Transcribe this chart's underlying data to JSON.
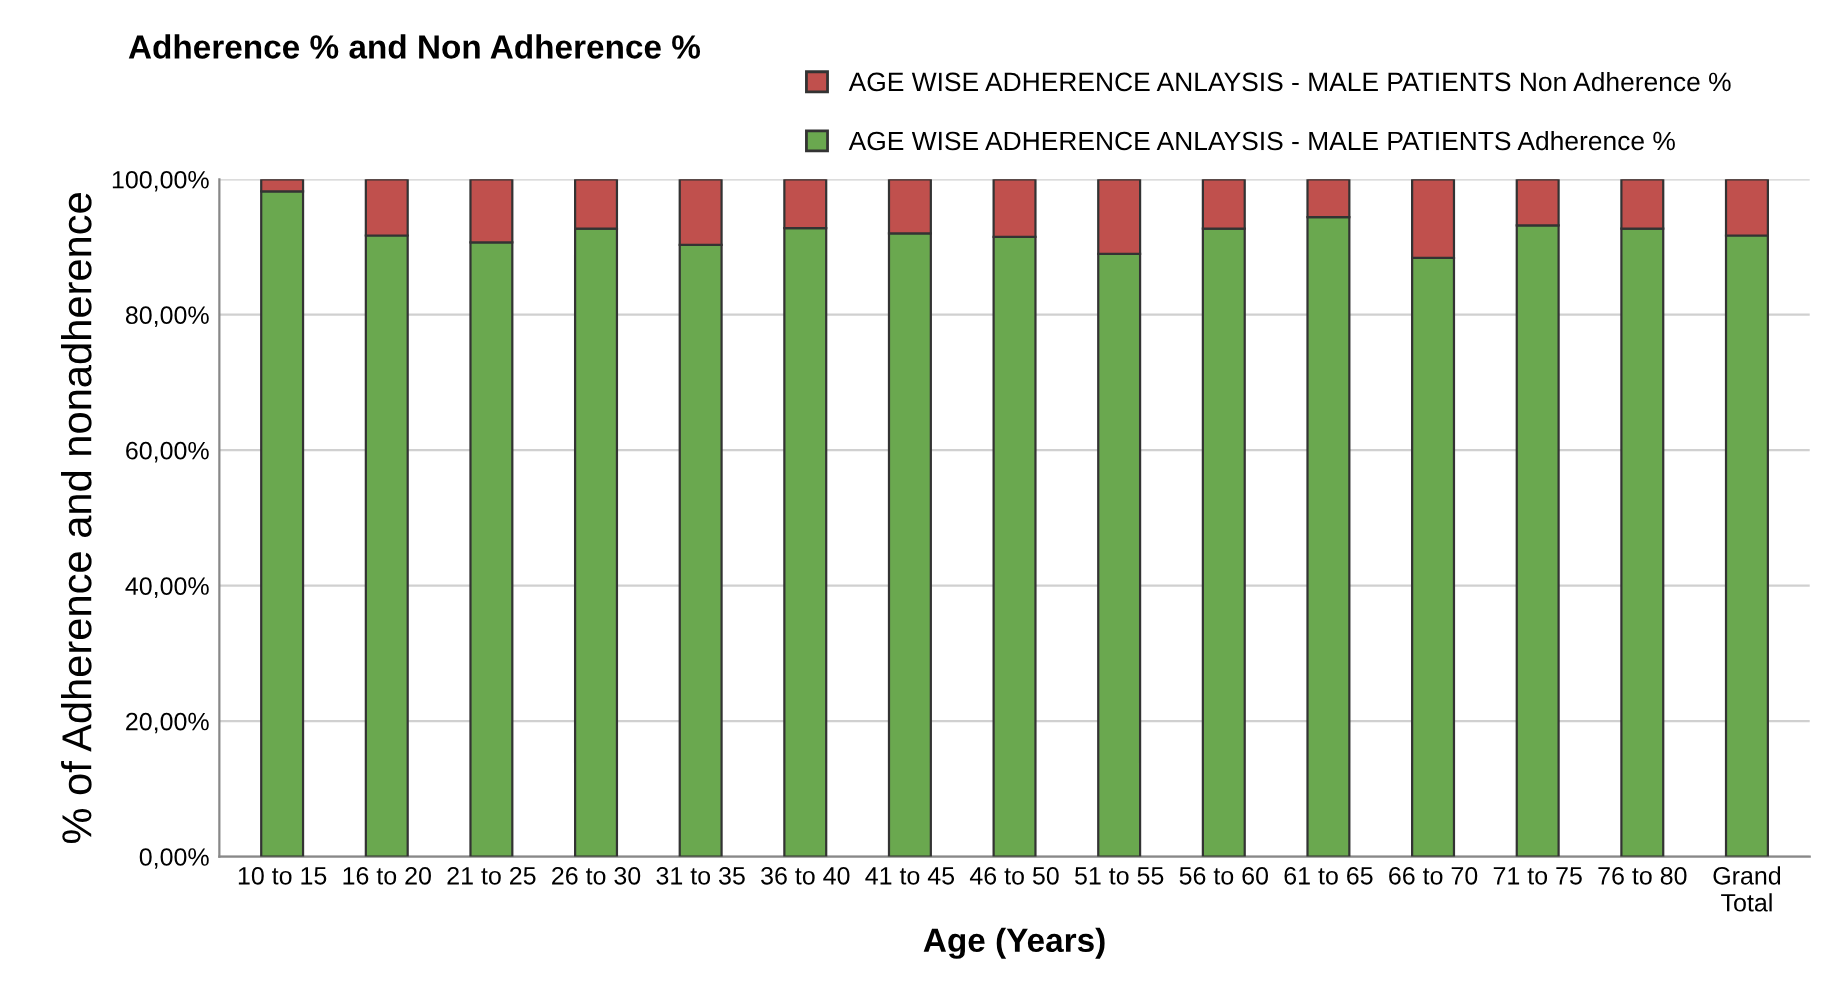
{
  "chart_data": {
    "type": "bar",
    "title": "Adherence % and Non Adherence %",
    "xlabel": "Age (Years)",
    "ylabel": "% of Adherence and nonadherence",
    "categories": [
      "10 to 15",
      "16 to 20",
      "21 to 25",
      "26 to 30",
      "31 to 35",
      "36 to 40",
      "41 to 45",
      "46 to 50",
      "51 to 55",
      "56 to 60",
      "61 to 65",
      "66 to 70",
      "71 to 75",
      "76 to 80",
      "Grand\nTotal"
    ],
    "stacked": true,
    "series": [
      {
        "name": "AGE WISE ADHERENCE ANLAYSIS - MALE PATIENTS Adherence %",
        "color": "#6aa84f",
        "values": [
          98.2,
          91.7,
          90.7,
          92.7,
          90.3,
          92.8,
          92.0,
          91.5,
          89.0,
          92.7,
          94.4,
          88.4,
          93.2,
          92.7,
          91.7
        ]
      },
      {
        "name": "AGE WISE ADHERENCE ANLAYSIS - MALE PATIENTS Non Adherence %",
        "color": "#c0504d",
        "values": [
          1.8,
          8.3,
          9.3,
          7.3,
          9.7,
          7.2,
          8.0,
          8.5,
          11.0,
          7.3,
          5.6,
          11.6,
          6.8,
          7.3,
          8.3
        ]
      }
    ],
    "ylim": [
      0,
      100
    ],
    "yticks": [
      {
        "value": 0,
        "label": "0,00%"
      },
      {
        "value": 20,
        "label": "20,00%"
      },
      {
        "value": 40,
        "label": "40,00%"
      },
      {
        "value": 60,
        "label": "60,00%"
      },
      {
        "value": 80,
        "label": "80,00%"
      },
      {
        "value": 100,
        "label": "100,00%"
      }
    ],
    "grid": "y",
    "legend": "top"
  }
}
